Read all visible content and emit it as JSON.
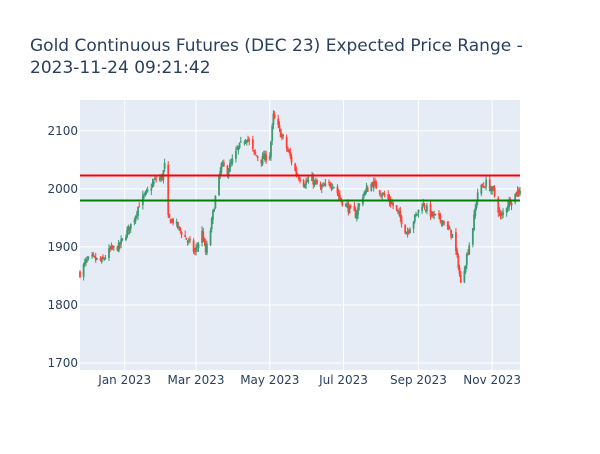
{
  "chart_data": {
    "type": "candlestick",
    "title_line1": "Gold Continuous Futures (DEC 23) Expected Price Range -",
    "title_line2": "2023-11-24 09:21:42",
    "xlabel": "",
    "ylabel": "",
    "x_range": [
      "2022-11-25",
      "2023-11-24"
    ],
    "ylim": [
      1688,
      2153
    ],
    "y_ticks": [
      1700,
      1800,
      1900,
      2000,
      2100
    ],
    "x_ticks": [
      {
        "date": "2023-01-01",
        "label": "Jan 2023"
      },
      {
        "date": "2023-03-01",
        "label": "Mar 2023"
      },
      {
        "date": "2023-05-01",
        "label": "May 2023"
      },
      {
        "date": "2023-07-01",
        "label": "Jul 2023"
      },
      {
        "date": "2023-09-01",
        "label": "Sep 2023"
      },
      {
        "date": "2023-11-01",
        "label": "Nov 2023"
      }
    ],
    "grid": true,
    "reference_lines": [
      {
        "value": 2023,
        "color": "#ff0000"
      },
      {
        "value": 1980,
        "color": "#008000"
      }
    ],
    "colors": {
      "increasing": "#3D9970",
      "decreasing": "#FF4136",
      "plot_bg": "#E5ECF6",
      "grid": "#ffffff",
      "text": "#2a3f5f"
    },
    "close_anchors": [
      [
        "2022-11-25",
        1855
      ],
      [
        "2022-11-30",
        1875
      ],
      [
        "2022-12-05",
        1880
      ],
      [
        "2022-12-13",
        1875
      ],
      [
        "2022-12-20",
        1895
      ],
      [
        "2022-12-27",
        1900
      ],
      [
        "2023-01-04",
        1930
      ],
      [
        "2023-01-09",
        1950
      ],
      [
        "2023-01-13",
        1975
      ],
      [
        "2023-01-20",
        1995
      ],
      [
        "2023-01-26",
        2015
      ],
      [
        "2023-02-01",
        2020
      ],
      [
        "2023-02-03",
        2040
      ],
      [
        "2023-02-06",
        1948
      ],
      [
        "2023-02-10",
        1945
      ],
      [
        "2023-02-17",
        1925
      ],
      [
        "2023-02-24",
        1905
      ],
      [
        "2023-02-28",
        1890
      ],
      [
        "2023-03-06",
        1925
      ],
      [
        "2023-03-09",
        1890
      ],
      [
        "2023-03-13",
        1930
      ],
      [
        "2023-03-17",
        1985
      ],
      [
        "2023-03-22",
        2040
      ],
      [
        "2023-03-27",
        2030
      ],
      [
        "2023-04-05",
        2070
      ],
      [
        "2023-04-12",
        2090
      ],
      [
        "2023-04-18",
        2060
      ],
      [
        "2023-04-24",
        2050
      ],
      [
        "2023-05-01",
        2060
      ],
      [
        "2023-05-04",
        2125
      ],
      [
        "2023-05-11",
        2090
      ],
      [
        "2023-05-17",
        2060
      ],
      [
        "2023-05-22",
        2030
      ],
      [
        "2023-05-29",
        2010
      ],
      [
        "2023-06-05",
        2015
      ],
      [
        "2023-06-12",
        2000
      ],
      [
        "2023-06-22",
        2010
      ],
      [
        "2023-06-29",
        1980
      ],
      [
        "2023-07-06",
        1965
      ],
      [
        "2023-07-11",
        1955
      ],
      [
        "2023-07-17",
        1990
      ],
      [
        "2023-07-25",
        2010
      ],
      [
        "2023-08-03",
        1990
      ],
      [
        "2023-08-10",
        1975
      ],
      [
        "2023-08-17",
        1950
      ],
      [
        "2023-08-22",
        1925
      ],
      [
        "2023-08-29",
        1950
      ],
      [
        "2023-09-04",
        1975
      ],
      [
        "2023-09-12",
        1955
      ],
      [
        "2023-09-21",
        1945
      ],
      [
        "2023-09-29",
        1920
      ],
      [
        "2023-10-04",
        1870
      ],
      [
        "2023-10-06",
        1835
      ],
      [
        "2023-10-10",
        1875
      ],
      [
        "2023-10-16",
        1935
      ],
      [
        "2023-10-20",
        1995
      ],
      [
        "2023-10-27",
        2010
      ],
      [
        "2023-11-02",
        1995
      ],
      [
        "2023-11-08",
        1950
      ],
      [
        "2023-11-14",
        1975
      ],
      [
        "2023-11-24",
        2000
      ]
    ]
  }
}
